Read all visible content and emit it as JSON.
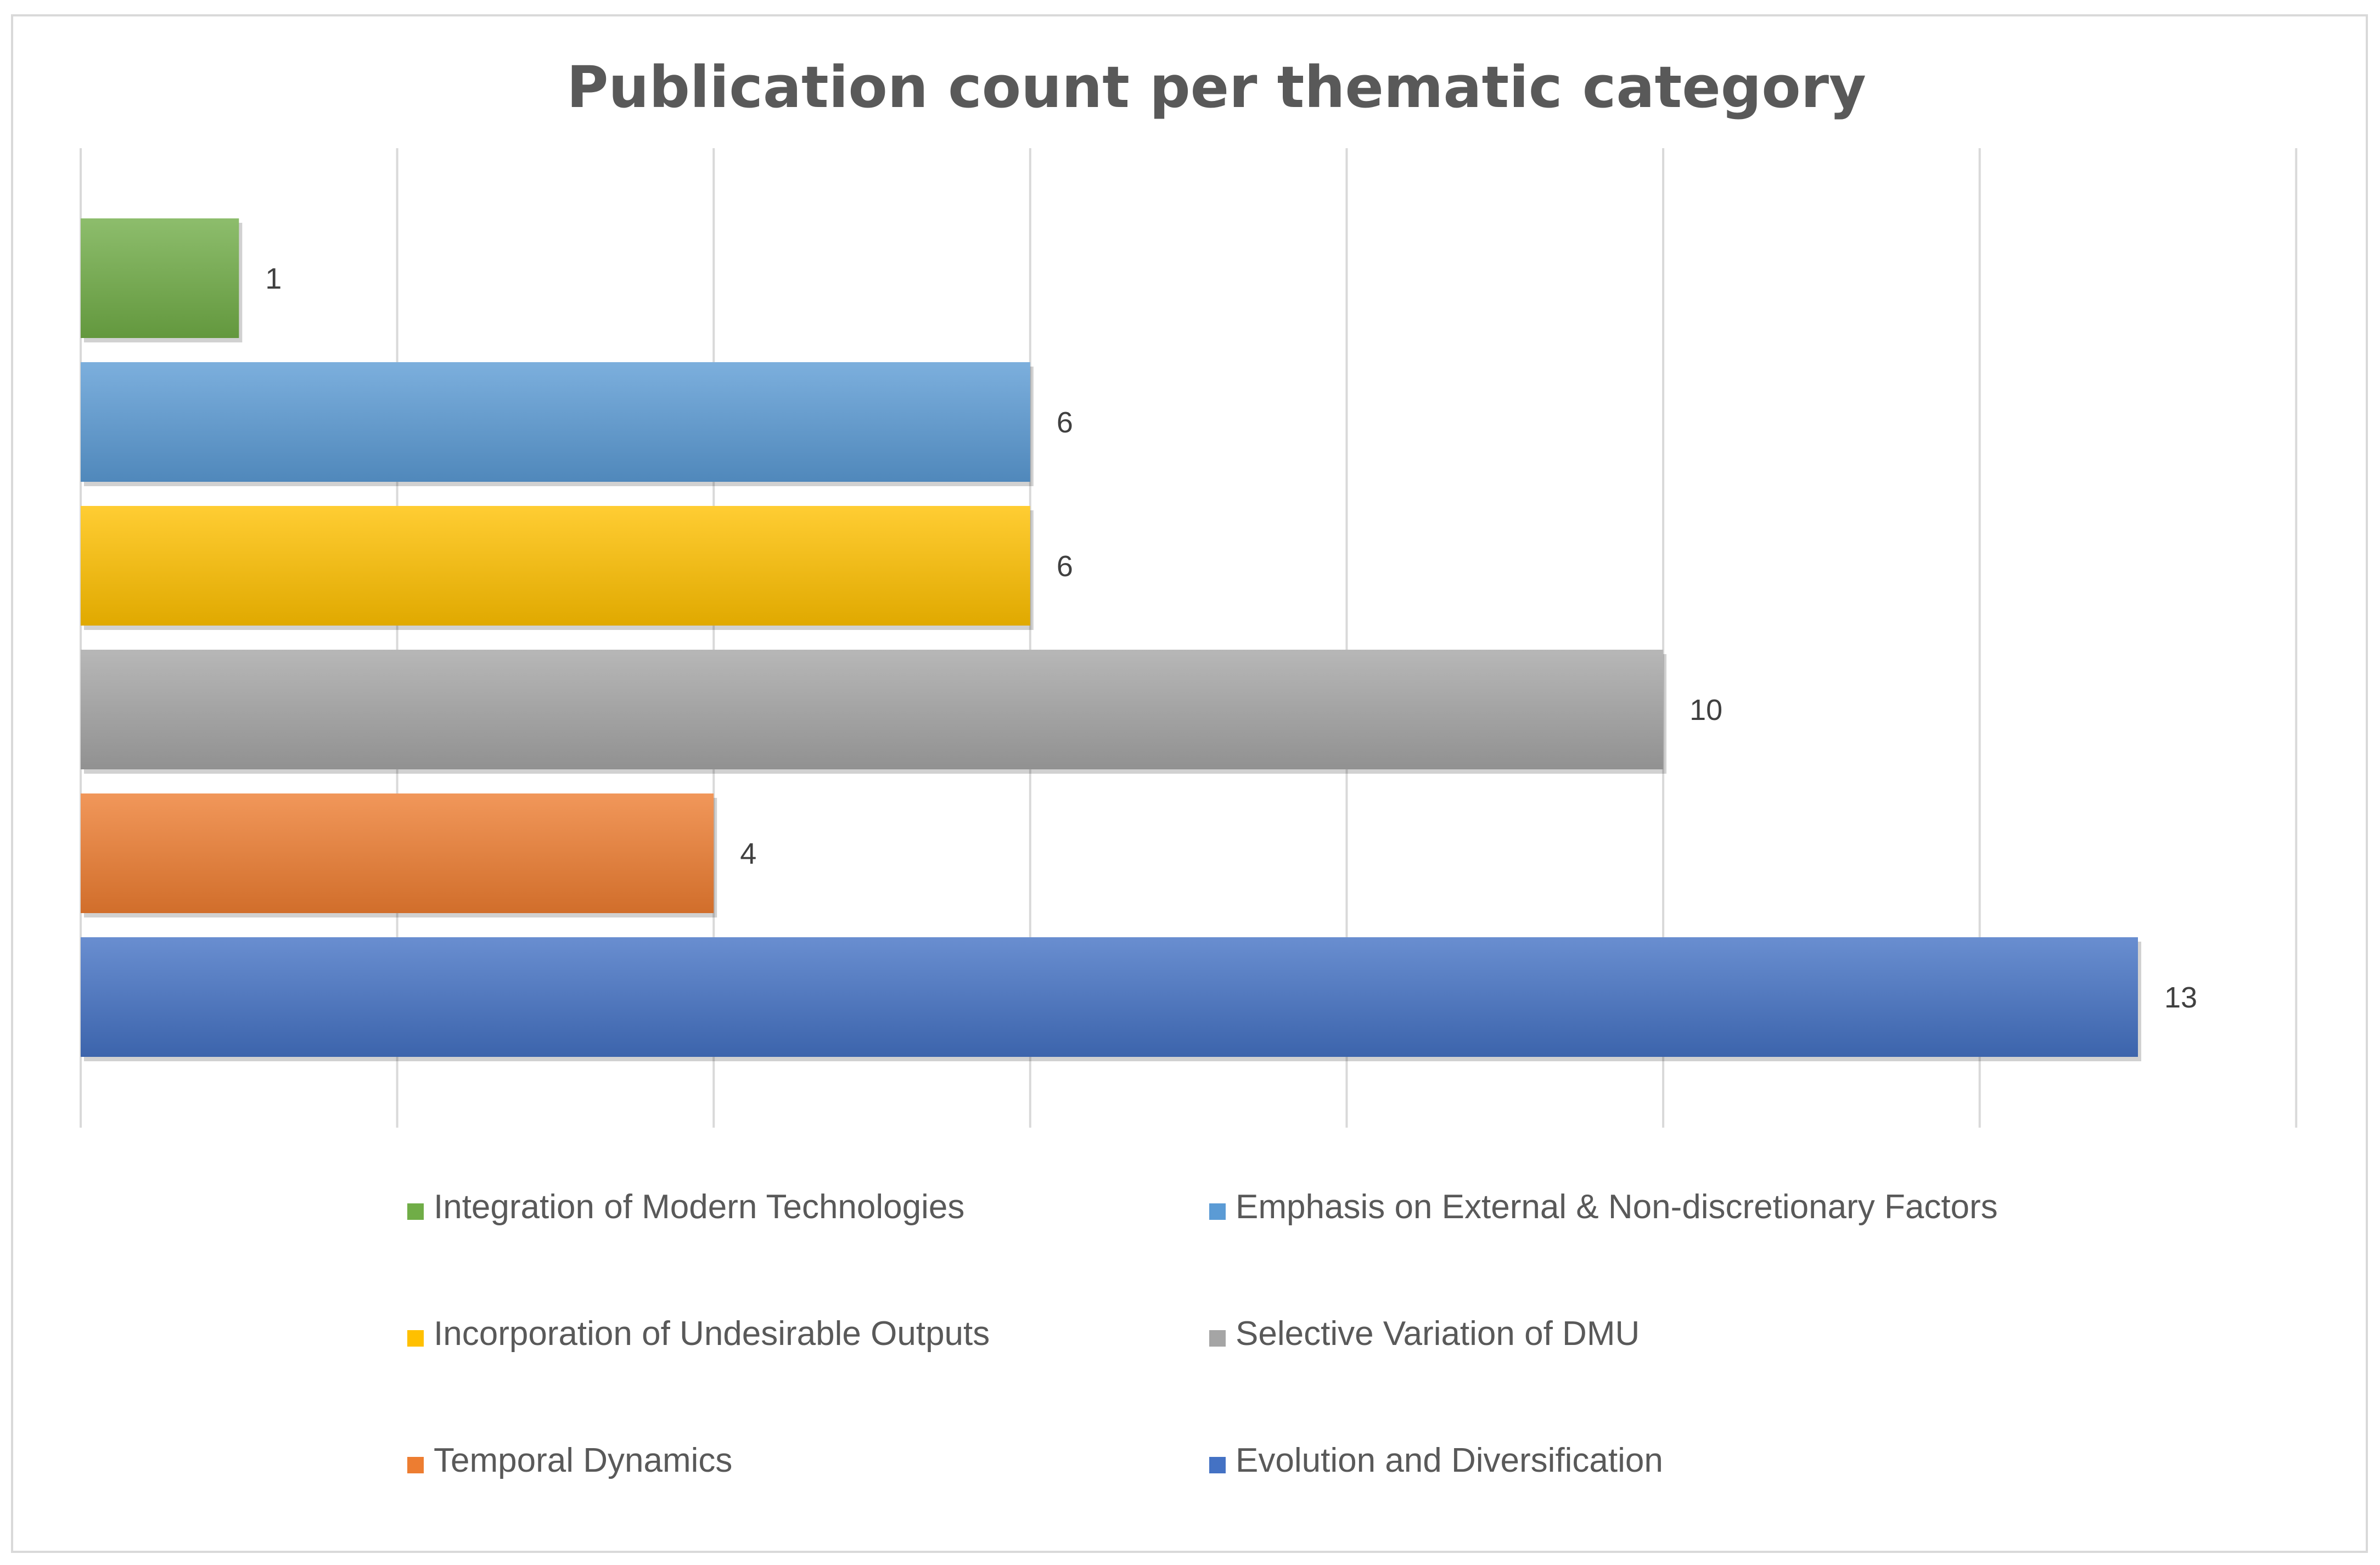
{
  "chart_data": {
    "type": "bar",
    "orientation": "horizontal",
    "title": "Publication count per thematic category",
    "xlabel": "",
    "ylabel": "",
    "xlim": [
      0,
      14
    ],
    "grid": true,
    "legend_position": "bottom",
    "data_labels": true,
    "series": [
      {
        "name": "Integration of Modern Technologies",
        "value": 1,
        "color": "#70ad47"
      },
      {
        "name": "Emphasis on External & Non-discretionary Factors",
        "value": 6,
        "color": "#5b9bd5"
      },
      {
        "name": "Incorporation of Undesirable Outputs",
        "value": 6,
        "color": "#ffc000"
      },
      {
        "name": "Selective Variation of DMU",
        "value": 10,
        "color": "#a5a5a5"
      },
      {
        "name": "Temporal Dynamics",
        "value": 4,
        "color": "#ed7d31"
      },
      {
        "name": "Evolution and Diversification",
        "value": 13,
        "color": "#4472c4"
      }
    ]
  }
}
